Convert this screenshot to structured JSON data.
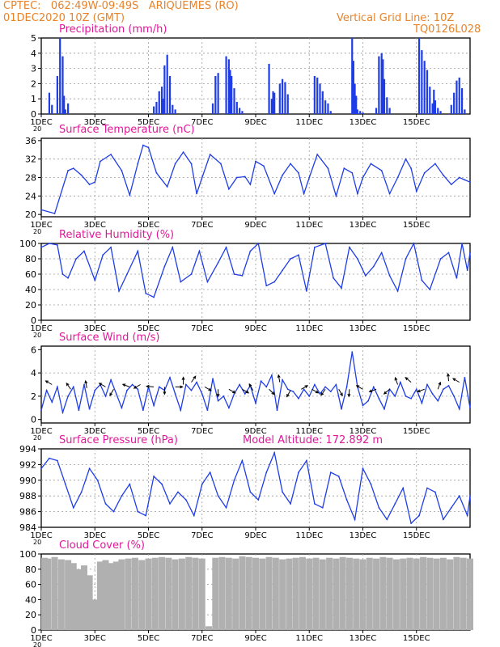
{
  "header": {
    "line1": "CPTEC:   062:49W-09:49S   ARIQUEMES (RO)",
    "line2": "01DEC2020 10Z (GMT)",
    "grid_note": "Vertical Grid Line: 10Z",
    "code": "TQ0126L028"
  },
  "colors": {
    "header": "#e8832a",
    "title": "#e0189a",
    "line": "#1f3de6",
    "bar": "#1f3de6",
    "cloud": "#b0b0b0",
    "grid": "#9a9a9a"
  },
  "x_tick_labels": [
    "1DEC",
    "3DEC",
    "5DEC",
    "7DEC",
    "9DEC",
    "11DEC",
    "13DEC",
    "15DEC"
  ],
  "cut_label": "20",
  "chart_data": [
    {
      "type": "bar",
      "title": "Precipitation (mm/h)",
      "ylim": [
        0,
        5
      ],
      "yticks": [
        "0",
        "1",
        "2",
        "3",
        "4",
        "5"
      ],
      "x": [
        0.3,
        0.4,
        0.6,
        0.7,
        0.8,
        0.85,
        0.9,
        1.0,
        4.2,
        4.3,
        4.4,
        4.5,
        4.55,
        4.6,
        4.7,
        4.8,
        4.9,
        5.0,
        6.4,
        6.5,
        6.6,
        6.9,
        7.0,
        7.05,
        7.1,
        7.2,
        7.3,
        7.4,
        7.5,
        8.5,
        8.6,
        8.65,
        8.7,
        8.9,
        9.0,
        9.1,
        9.2,
        10.2,
        10.3,
        10.4,
        10.5,
        10.6,
        10.7,
        10.8,
        11.6,
        11.65,
        11.7,
        11.75,
        11.8,
        11.9,
        12.0,
        12.5,
        12.6,
        12.7,
        12.75,
        12.8,
        12.9,
        13.0,
        14.1,
        14.2,
        14.3,
        14.4,
        14.5,
        14.6,
        14.65,
        14.7,
        14.8,
        14.9,
        15.3,
        15.4,
        15.5,
        15.6,
        15.7,
        15.8
      ],
      "values": [
        1.4,
        0.6,
        2.5,
        5.0,
        3.8,
        1.2,
        0.3,
        0.7,
        0.5,
        0.8,
        1.5,
        1.8,
        1.0,
        3.2,
        3.9,
        2.5,
        0.6,
        0.3,
        0.7,
        2.5,
        2.7,
        3.8,
        3.6,
        2.9,
        2.5,
        1.7,
        0.8,
        0.4,
        0.2,
        3.3,
        1.0,
        1.5,
        1.4,
        2.0,
        2.3,
        2.1,
        1.3,
        2.5,
        2.4,
        2.0,
        1.5,
        0.9,
        0.7,
        0.2,
        5.0,
        3.5,
        2.0,
        1.2,
        0.3,
        0.2,
        0.1,
        0.4,
        3.8,
        4.0,
        3.6,
        2.3,
        1.1,
        0.4,
        5.0,
        4.2,
        3.5,
        2.9,
        1.8,
        0.7,
        1.6,
        0.9,
        0.4,
        0.2,
        0.6,
        1.4,
        2.2,
        2.4,
        1.7,
        0.3
      ]
    },
    {
      "type": "line",
      "title": "Surface Temperature (nC)",
      "ylim": [
        19.5,
        36.5
      ],
      "yticks": [
        "20",
        "24",
        "28",
        "32",
        "36"
      ],
      "x": [
        0,
        0.5,
        1.0,
        1.2,
        1.5,
        1.8,
        2.0,
        2.2,
        2.6,
        3.0,
        3.3,
        3.6,
        3.8,
        4.0,
        4.3,
        4.7,
        5.0,
        5.3,
        5.6,
        5.8,
        6.0,
        6.3,
        6.7,
        7.0,
        7.3,
        7.6,
        7.8,
        8.0,
        8.3,
        8.7,
        9.0,
        9.3,
        9.6,
        9.8,
        10.0,
        10.3,
        10.7,
        11.0,
        11.3,
        11.6,
        11.8,
        12.0,
        12.3,
        12.7,
        13.0,
        13.3,
        13.6,
        13.8,
        14.0,
        14.3,
        14.7,
        15.0,
        15.3,
        15.6,
        15.8,
        16.0
      ],
      "values": [
        21.0,
        20.2,
        29.5,
        30.0,
        28.5,
        26.5,
        27.0,
        31.5,
        33.0,
        29.5,
        24.2,
        31.0,
        35.0,
        34.5,
        29.0,
        26.0,
        31.0,
        33.5,
        31.0,
        24.5,
        28.0,
        33.0,
        31.0,
        25.5,
        28.0,
        28.2,
        26.5,
        31.5,
        30.5,
        24.5,
        28.5,
        31.0,
        29.0,
        24.5,
        28.0,
        33.0,
        30.0,
        24.0,
        30.0,
        29.0,
        24.5,
        28.0,
        31.0,
        29.5,
        24.5,
        28.0,
        32.0,
        30.0,
        25.0,
        29.0,
        31.0,
        28.5,
        26.5,
        28.0,
        27.5,
        27.0
      ]
    },
    {
      "type": "line",
      "title": "Relative Humidity (%)",
      "ylim": [
        0,
        100
      ],
      "yticks": [
        "0",
        "20",
        "40",
        "60",
        "80",
        "100"
      ],
      "x": [
        0,
        0.3,
        0.6,
        0.8,
        1.0,
        1.3,
        1.6,
        2.0,
        2.3,
        2.6,
        2.9,
        3.2,
        3.6,
        3.9,
        4.2,
        4.6,
        4.9,
        5.2,
        5.6,
        5.9,
        6.2,
        6.6,
        6.9,
        7.2,
        7.5,
        7.8,
        8.1,
        8.4,
        8.7,
        9.0,
        9.3,
        9.6,
        9.9,
        10.2,
        10.6,
        10.9,
        11.2,
        11.5,
        11.8,
        12.1,
        12.4,
        12.7,
        13.0,
        13.3,
        13.6,
        13.9,
        14.2,
        14.5,
        14.9,
        15.2,
        15.5,
        15.7,
        15.9,
        16.0
      ],
      "values": [
        95,
        100,
        98,
        60,
        55,
        80,
        90,
        52,
        85,
        95,
        38,
        60,
        90,
        35,
        30,
        70,
        95,
        50,
        60,
        90,
        50,
        75,
        95,
        60,
        58,
        90,
        100,
        45,
        50,
        65,
        80,
        85,
        38,
        95,
        100,
        55,
        42,
        95,
        80,
        58,
        70,
        88,
        58,
        38,
        80,
        100,
        52,
        40,
        80,
        88,
        55,
        100,
        65,
        88
      ]
    },
    {
      "type": "line",
      "title": "Surface Wind (m/s)",
      "ylim": [
        -0.3,
        6.3
      ],
      "yticks": [
        "0",
        "2",
        "4",
        "6"
      ],
      "x": [
        0,
        0.2,
        0.4,
        0.6,
        0.8,
        1.0,
        1.2,
        1.4,
        1.6,
        1.8,
        2.0,
        2.2,
        2.4,
        2.6,
        2.8,
        3.0,
        3.2,
        3.4,
        3.6,
        3.8,
        4.0,
        4.2,
        4.4,
        4.6,
        4.8,
        5.0,
        5.2,
        5.4,
        5.6,
        5.8,
        6.0,
        6.2,
        6.4,
        6.6,
        6.8,
        7.0,
        7.2,
        7.4,
        7.6,
        7.8,
        8.0,
        8.2,
        8.4,
        8.6,
        8.8,
        9.0,
        9.2,
        9.4,
        9.6,
        9.8,
        10.0,
        10.2,
        10.4,
        10.6,
        10.8,
        11.0,
        11.2,
        11.4,
        11.6,
        11.8,
        12.0,
        12.2,
        12.4,
        12.6,
        12.8,
        13.0,
        13.2,
        13.4,
        13.6,
        13.8,
        14.0,
        14.2,
        14.4,
        14.6,
        14.8,
        15.0,
        15.2,
        15.4,
        15.6,
        15.8,
        16.0
      ],
      "values": [
        0.8,
        2.5,
        1.5,
        2.8,
        0.6,
        2.0,
        2.8,
        0.8,
        3.0,
        0.9,
        2.5,
        3.0,
        2.0,
        3.4,
        2.2,
        1.0,
        2.5,
        3.0,
        2.6,
        0.8,
        2.8,
        1.2,
        2.8,
        2.5,
        3.6,
        2.2,
        0.8,
        3.0,
        2.5,
        3.2,
        2.2,
        0.8,
        3.5,
        1.6,
        2.0,
        1.0,
        2.2,
        3.0,
        2.2,
        2.9,
        1.4,
        3.3,
        2.8,
        3.8,
        0.8,
        3.4,
        2.6,
        2.4,
        1.8,
        2.6,
        2.0,
        3.0,
        2.2,
        2.8,
        2.4,
        3.0,
        0.9,
        2.8,
        5.8,
        2.8,
        1.2,
        1.6,
        2.8,
        1.8,
        0.9,
        2.6,
        2.0,
        3.2,
        2.0,
        1.8,
        2.6,
        1.4,
        3.0,
        2.2,
        1.6,
        2.6,
        2.9,
        2.0,
        0.9,
        3.6,
        1.0
      ],
      "arrows": [
        {
          "x": 0.4,
          "y": 3.0,
          "ang": 150
        },
        {
          "x": 1.1,
          "y": 2.6,
          "ang": 125
        },
        {
          "x": 1.7,
          "y": 2.7,
          "ang": 100
        },
        {
          "x": 2.4,
          "y": 2.8,
          "ang": 150
        },
        {
          "x": 2.7,
          "y": 2.6,
          "ang": 240
        },
        {
          "x": 3.3,
          "y": 2.8,
          "ang": 160
        },
        {
          "x": 3.7,
          "y": 3.0,
          "ang": 210
        },
        {
          "x": 4.2,
          "y": 2.8,
          "ang": 175
        },
        {
          "x": 4.6,
          "y": 2.8,
          "ang": 270
        },
        {
          "x": 5.0,
          "y": 2.8,
          "ang": 0
        },
        {
          "x": 5.3,
          "y": 3.0,
          "ang": 90
        },
        {
          "x": 5.6,
          "y": 3.2,
          "ang": 55
        },
        {
          "x": 6.1,
          "y": 2.8,
          "ang": 330
        },
        {
          "x": 6.6,
          "y": 2.6,
          "ang": 270
        },
        {
          "x": 7.0,
          "y": 2.6,
          "ang": 330
        },
        {
          "x": 7.5,
          "y": 2.6,
          "ang": 330
        },
        {
          "x": 7.9,
          "y": 2.5,
          "ang": 120
        },
        {
          "x": 8.5,
          "y": 2.6,
          "ang": 315
        },
        {
          "x": 8.9,
          "y": 3.2,
          "ang": 100
        },
        {
          "x": 9.3,
          "y": 2.5,
          "ang": 240
        },
        {
          "x": 9.7,
          "y": 2.6,
          "ang": 30
        },
        {
          "x": 10.1,
          "y": 2.6,
          "ang": 330
        },
        {
          "x": 10.6,
          "y": 2.6,
          "ang": 235
        },
        {
          "x": 11.1,
          "y": 2.6,
          "ang": 300
        },
        {
          "x": 11.5,
          "y": 2.6,
          "ang": 265
        },
        {
          "x": 12.0,
          "y": 2.6,
          "ang": 150
        },
        {
          "x": 12.5,
          "y": 2.6,
          "ang": 200
        },
        {
          "x": 13.0,
          "y": 2.6,
          "ang": 220
        },
        {
          "x": 13.3,
          "y": 3.0,
          "ang": 110
        },
        {
          "x": 13.8,
          "y": 3.2,
          "ang": 140
        },
        {
          "x": 14.3,
          "y": 2.6,
          "ang": 200
        },
        {
          "x": 14.8,
          "y": 2.6,
          "ang": 70
        },
        {
          "x": 15.2,
          "y": 3.3,
          "ang": 95
        },
        {
          "x": 15.6,
          "y": 3.2,
          "ang": 150
        }
      ]
    },
    {
      "type": "line",
      "title": "Surface Pressure (hPa)",
      "note": "Model Altitude: 172.892  m",
      "ylim": [
        984,
        994
      ],
      "yticks": [
        "984",
        "986",
        "988",
        "990",
        "992",
        "994"
      ],
      "x": [
        0,
        0.3,
        0.6,
        0.9,
        1.2,
        1.5,
        1.8,
        2.1,
        2.4,
        2.7,
        3.0,
        3.3,
        3.6,
        3.9,
        4.2,
        4.5,
        4.8,
        5.1,
        5.4,
        5.7,
        6.0,
        6.3,
        6.6,
        6.9,
        7.2,
        7.5,
        7.8,
        8.1,
        8.4,
        8.7,
        9.0,
        9.3,
        9.6,
        9.9,
        10.2,
        10.5,
        10.8,
        11.1,
        11.4,
        11.7,
        12.0,
        12.3,
        12.6,
        12.9,
        13.2,
        13.5,
        13.8,
        14.1,
        14.4,
        14.7,
        15.0,
        15.3,
        15.6,
        15.9,
        16.0
      ],
      "values": [
        991.5,
        992.8,
        992.5,
        989.5,
        986.5,
        988.5,
        991.5,
        990.0,
        987.0,
        986.0,
        988.0,
        989.5,
        986.0,
        985.5,
        990.5,
        989.5,
        987.0,
        988.5,
        987.5,
        985.5,
        989.5,
        991.0,
        988.0,
        986.5,
        990.0,
        992.5,
        988.5,
        987.5,
        991.0,
        993.5,
        988.5,
        987.0,
        991.0,
        992.5,
        987.0,
        986.5,
        991.0,
        990.5,
        987.5,
        985.0,
        991.5,
        989.5,
        986.5,
        985.0,
        987.0,
        989.0,
        984.5,
        985.5,
        989.0,
        988.5,
        985.0,
        986.5,
        988.0,
        985.5,
        988.0
      ]
    },
    {
      "type": "bar",
      "title": "Cloud Cover (%)",
      "ylim": [
        0,
        100
      ],
      "yticks": [
        "0",
        "20",
        "40",
        "60",
        "80",
        "100"
      ],
      "x": [
        0.0,
        0.25,
        0.5,
        0.75,
        1.0,
        1.2,
        1.4,
        1.6,
        1.8,
        1.9,
        2.0,
        2.2,
        2.4,
        2.6,
        2.8,
        3.0,
        3.25,
        3.5,
        3.75,
        4.0,
        4.25,
        4.5,
        4.75,
        5.0,
        5.25,
        5.5,
        5.75,
        6.0,
        6.25,
        6.5,
        6.75,
        7.0,
        7.25,
        7.5,
        7.75,
        8.0,
        8.25,
        8.5,
        8.75,
        9.0,
        9.25,
        9.5,
        9.75,
        10.0,
        10.25,
        10.5,
        10.75,
        11.0,
        11.25,
        11.5,
        11.75,
        12.0,
        12.25,
        12.5,
        12.75,
        13.0,
        13.25,
        13.5,
        13.75,
        14.0,
        14.25,
        14.5,
        14.75,
        15.0,
        15.25,
        15.5,
        15.75,
        16.0
      ],
      "values": [
        95,
        94,
        96,
        93,
        92,
        88,
        80,
        85,
        72,
        4,
        40,
        90,
        92,
        88,
        90,
        93,
        94,
        95,
        92,
        94,
        95,
        96,
        95,
        93,
        94,
        96,
        95,
        94,
        5,
        95,
        96,
        95,
        94,
        97,
        96,
        95,
        94,
        96,
        95,
        93,
        94,
        95,
        96,
        94,
        95,
        93,
        95,
        94,
        96,
        95,
        94,
        93,
        95,
        94,
        96,
        95,
        93,
        94,
        95,
        94,
        96,
        95,
        94,
        95,
        93,
        96,
        95,
        94
      ]
    }
  ]
}
